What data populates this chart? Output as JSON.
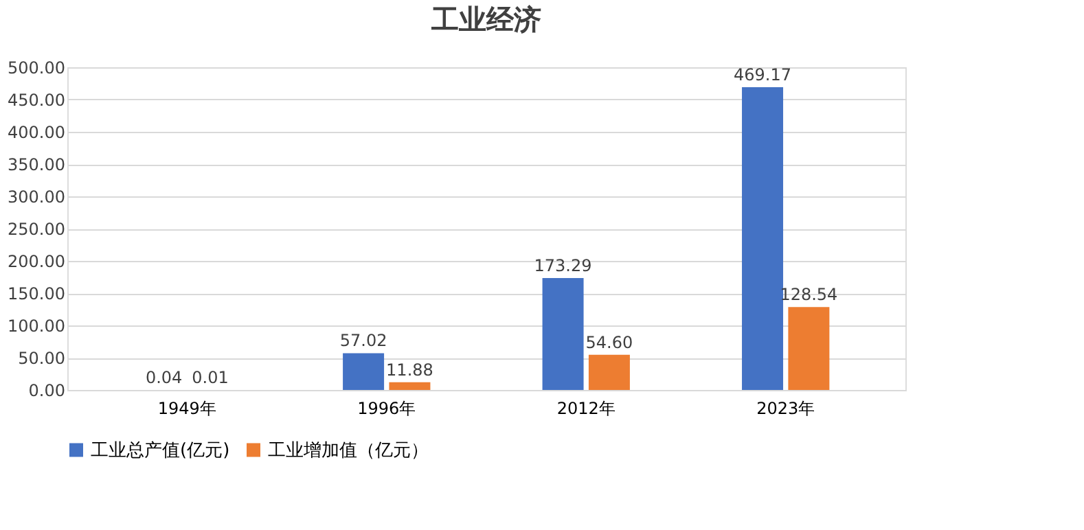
{
  "chart_data": {
    "type": "bar",
    "title": "工业经济",
    "categories": [
      "1949年",
      "1996年",
      "2012年",
      "2023年"
    ],
    "series": [
      {
        "name": "工业总产值(亿元)",
        "color": "#4472c4",
        "values": [
          0.04,
          57.02,
          173.29,
          469.17
        ],
        "value_labels": [
          "0.04",
          "57.02",
          "173.29",
          "469.17"
        ]
      },
      {
        "name": "工业增加值（亿元）",
        "color": "#ed7d31",
        "values": [
          0.01,
          11.88,
          54.6,
          128.54
        ],
        "value_labels": [
          "0.01",
          "11.88",
          "54.60",
          "128.54"
        ]
      }
    ],
    "ylim": [
      0,
      500
    ],
    "yticks": [
      {
        "value": 0,
        "label": "0.00"
      },
      {
        "value": 50,
        "label": "50.00"
      },
      {
        "value": 100,
        "label": "100.00"
      },
      {
        "value": 150,
        "label": "150.00"
      },
      {
        "value": 200,
        "label": "200.00"
      },
      {
        "value": 250,
        "label": "250.00"
      },
      {
        "value": 300,
        "label": "300.00"
      },
      {
        "value": 350,
        "label": "350.00"
      },
      {
        "value": 400,
        "label": "400.00"
      },
      {
        "value": 450,
        "label": "450.00"
      },
      {
        "value": 500,
        "label": "500.00"
      }
    ],
    "grid": "y",
    "legend": "bottom"
  }
}
